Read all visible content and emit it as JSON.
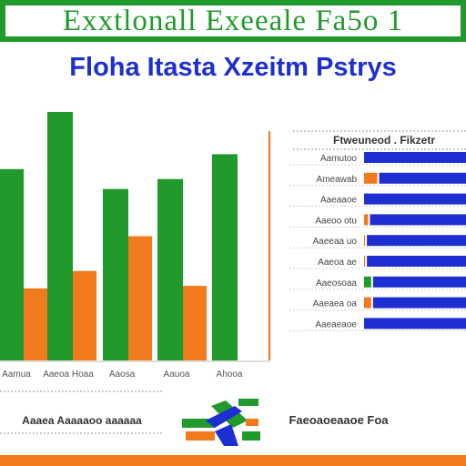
{
  "banner": {
    "title": "Exxtlonall Exeeale Fa5o 1"
  },
  "subtitle": "Floha Itasta Xzeitm Pstrys",
  "colors": {
    "green": "#1f9a2b",
    "orange": "#f07a1c",
    "blue": "#1e2fd1",
    "gray": "#9a9a9a"
  },
  "chart_data": [
    {
      "type": "bar",
      "title": "",
      "xlabel": "",
      "ylabel": "",
      "ylim": [
        0,
        100
      ],
      "categories": [
        "Aamua",
        "Aaeoa Hoaa",
        "Aaosa",
        "Aauoa",
        "Ahooa"
      ],
      "series": [
        {
          "values": [
            77,
            100,
            69,
            73,
            83
          ]
        },
        {
          "values": [
            29,
            36,
            50,
            30,
            0
          ]
        }
      ],
      "grid": false
    },
    {
      "type": "bar",
      "orientation": "horizontal",
      "title": "Ftweuneod . Fikzetr",
      "xlim": [
        0,
        100
      ],
      "categories": [
        "Aamutoo",
        "Ameawab",
        "Aaeaaoe",
        "Aaeoo otu",
        "Aaeeaa uo",
        "Aaeoa ae",
        "Aaeosoaa",
        "Aaeaea oa",
        "Aaeaeaoe"
      ],
      "series": [
        {
          "values": [
            100,
            87,
            100,
            96,
            99,
            99,
            93,
            93,
            100
          ]
        },
        {
          "values": [
            0,
            13,
            0,
            4,
            1,
            1,
            7,
            7,
            0
          ]
        }
      ]
    }
  ],
  "legend": {
    "left_text": "Aaaea Aaaaaoo aaaaaa",
    "right_text": "Faeoaoeaaoe Foa"
  }
}
